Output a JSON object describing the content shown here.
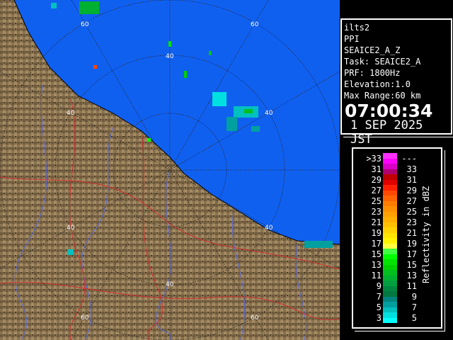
{
  "info": {
    "station": "ilts2",
    "scan_type": "PPI",
    "product": "SEAICE2_A_Z",
    "task": "Task: SEAICE2_A",
    "prf": "PRF: 1800Hz",
    "elevation": "Elevation:1.0",
    "max_range": "Max Range:60 km",
    "time": "07:00:34",
    "date": "1 SEP 2025 JST"
  },
  "legend": {
    "unit": "Reflectivity in dBZ",
    "left_labels": [
      ">33",
      "31",
      "29",
      "27",
      "25",
      "23",
      "21",
      "19",
      "17",
      "15",
      "13",
      "11",
      "9",
      "7",
      "5",
      "3"
    ],
    "right_labels": [
      "---",
      "33",
      "31",
      "29",
      "27",
      "25",
      "23",
      "21",
      "19",
      "17",
      "15",
      "13",
      "11",
      "9",
      "7",
      "5"
    ],
    "colors": [
      "#ff30ff",
      "#ff00ff",
      "#d800c8",
      "#b00070",
      "#c00000",
      "#e00000",
      "#ff2000",
      "#ff4800",
      "#ff6400",
      "#ff7c00",
      "#ff9000",
      "#ffa000",
      "#ffb000",
      "#ffc000",
      "#ffd400",
      "#ffe400",
      "#fff400",
      "#ffff40",
      "#40ff40",
      "#00ff00",
      "#00e400",
      "#00d000",
      "#00c020",
      "#00b030",
      "#00a040",
      "#008840",
      "#007840",
      "#008480",
      "#00a0a0",
      "#00c0c0",
      "#00e0e0",
      "#00ffff"
    ]
  },
  "map": {
    "sea_color": "#1060f0",
    "land_color": "#8a7350",
    "range_labels": [
      "60",
      "60",
      "40",
      "40",
      "40",
      "40",
      "40",
      "40",
      "60",
      "60"
    ]
  }
}
